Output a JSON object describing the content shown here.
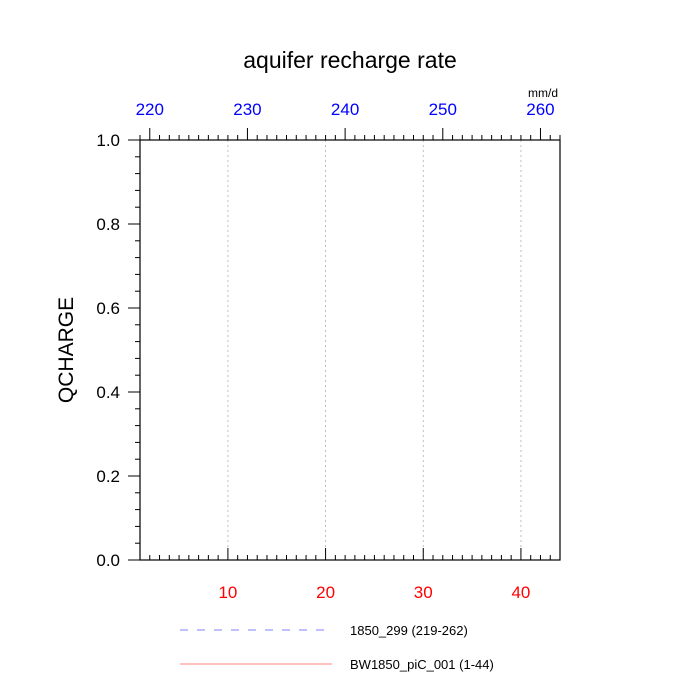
{
  "chart_data": {
    "type": "line",
    "title": "aquifer recharge rate",
    "ylabel": "QCHARGE",
    "units": "mm/d",
    "ylim": [
      0.0,
      1.0
    ],
    "y_ticks": [
      "0.0",
      "0.2",
      "0.4",
      "0.6",
      "0.8",
      "1.0"
    ],
    "x_bottom": {
      "lim": [
        1,
        44
      ],
      "ticks": [
        10,
        20,
        30,
        40
      ],
      "color": "#ff0000"
    },
    "x_top": {
      "lim": [
        219,
        262
      ],
      "ticks": [
        220,
        230,
        240,
        250,
        260
      ],
      "color": "#0000ff"
    },
    "grid": "vertical dotted at bottom-axis ticks",
    "series": [
      {
        "name": "1850_299 (219-262)",
        "values": [],
        "color": "#8080ff",
        "style": "dashed"
      },
      {
        "name": "BW1850_piC_001 (1-44)",
        "values": [],
        "color": "#ff8080",
        "style": "solid"
      }
    ],
    "legend_position": "bottom"
  }
}
